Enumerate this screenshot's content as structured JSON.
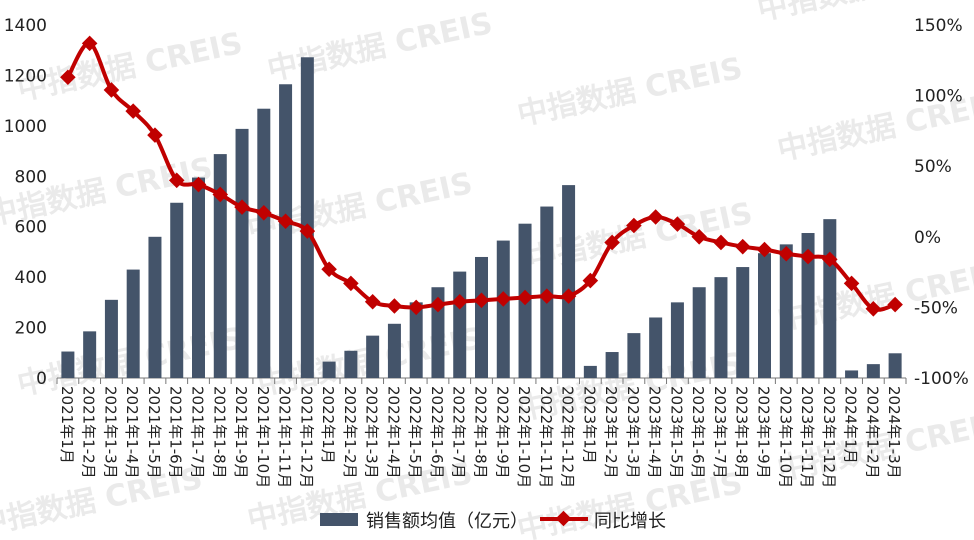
{
  "chart_data": {
    "type": "bar+line",
    "categories": [
      "2021年1月",
      "2021年1-2月",
      "2021年1-3月",
      "2021年1-4月",
      "2021年1-5月",
      "2021年1-6月",
      "2021年1-7月",
      "2021年1-8月",
      "2021年1-9月",
      "2021年1-10月",
      "2021年1-11月",
      "2021年1-12月",
      "2022年1月",
      "2022年1-2月",
      "2022年1-3月",
      "2022年1-4月",
      "2022年1-5月",
      "2022年1-6月",
      "2022年1-7月",
      "2022年1-8月",
      "2022年1-9月",
      "2022年1-10月",
      "2022年1-11月",
      "2022年1-12月",
      "2023年1月",
      "2023年1-2月",
      "2023年1-3月",
      "2023年1-4月",
      "2023年1-5月",
      "2023年1-6月",
      "2023年1-7月",
      "2023年1-8月",
      "2023年1-9月",
      "2023年1-10月",
      "2023年1-11月",
      "2023年1-12月",
      "2024年1月",
      "2024年1-2月",
      "2024年1-3月"
    ],
    "series": [
      {
        "name": "销售额均值（亿元）",
        "type": "bar",
        "axis": "left",
        "color": "#44546a",
        "values": [
          105,
          185,
          310,
          430,
          560,
          695,
          795,
          888,
          988,
          1068,
          1165,
          1272,
          65,
          108,
          168,
          215,
          300,
          360,
          422,
          480,
          545,
          612,
          680,
          765,
          48,
          103,
          178,
          240,
          300,
          360,
          400,
          440,
          495,
          530,
          575,
          630,
          30,
          55,
          98
        ]
      },
      {
        "name": "同比增长",
        "type": "line",
        "axis": "right",
        "color": "#c00000",
        "values": [
          113,
          137,
          104,
          89,
          72,
          40,
          37,
          30,
          21,
          17,
          11,
          4,
          -23,
          -33,
          -46,
          -49,
          -50,
          -48,
          -46,
          -45,
          -44,
          -43,
          -42,
          -42,
          -31,
          -4,
          8,
          14,
          9,
          0,
          -4,
          -7,
          -9,
          -12,
          -14,
          -16,
          -33,
          -51,
          -48
        ]
      }
    ],
    "y_left": {
      "min": 0,
      "max": 1400,
      "ticks": [
        "0",
        "200",
        "400",
        "600",
        "800",
        "1000",
        "1200",
        "1400"
      ]
    },
    "y_right": {
      "min": -100,
      "max": 150,
      "ticks": [
        "-100%",
        "-50%",
        "0%",
        "50%",
        "100%",
        "150%"
      ]
    },
    "legend": {
      "bar_label": "销售额均值（亿元）",
      "line_label": "同比增长",
      "position": "bottom"
    },
    "watermark_text": "中指数据 CREIS"
  }
}
